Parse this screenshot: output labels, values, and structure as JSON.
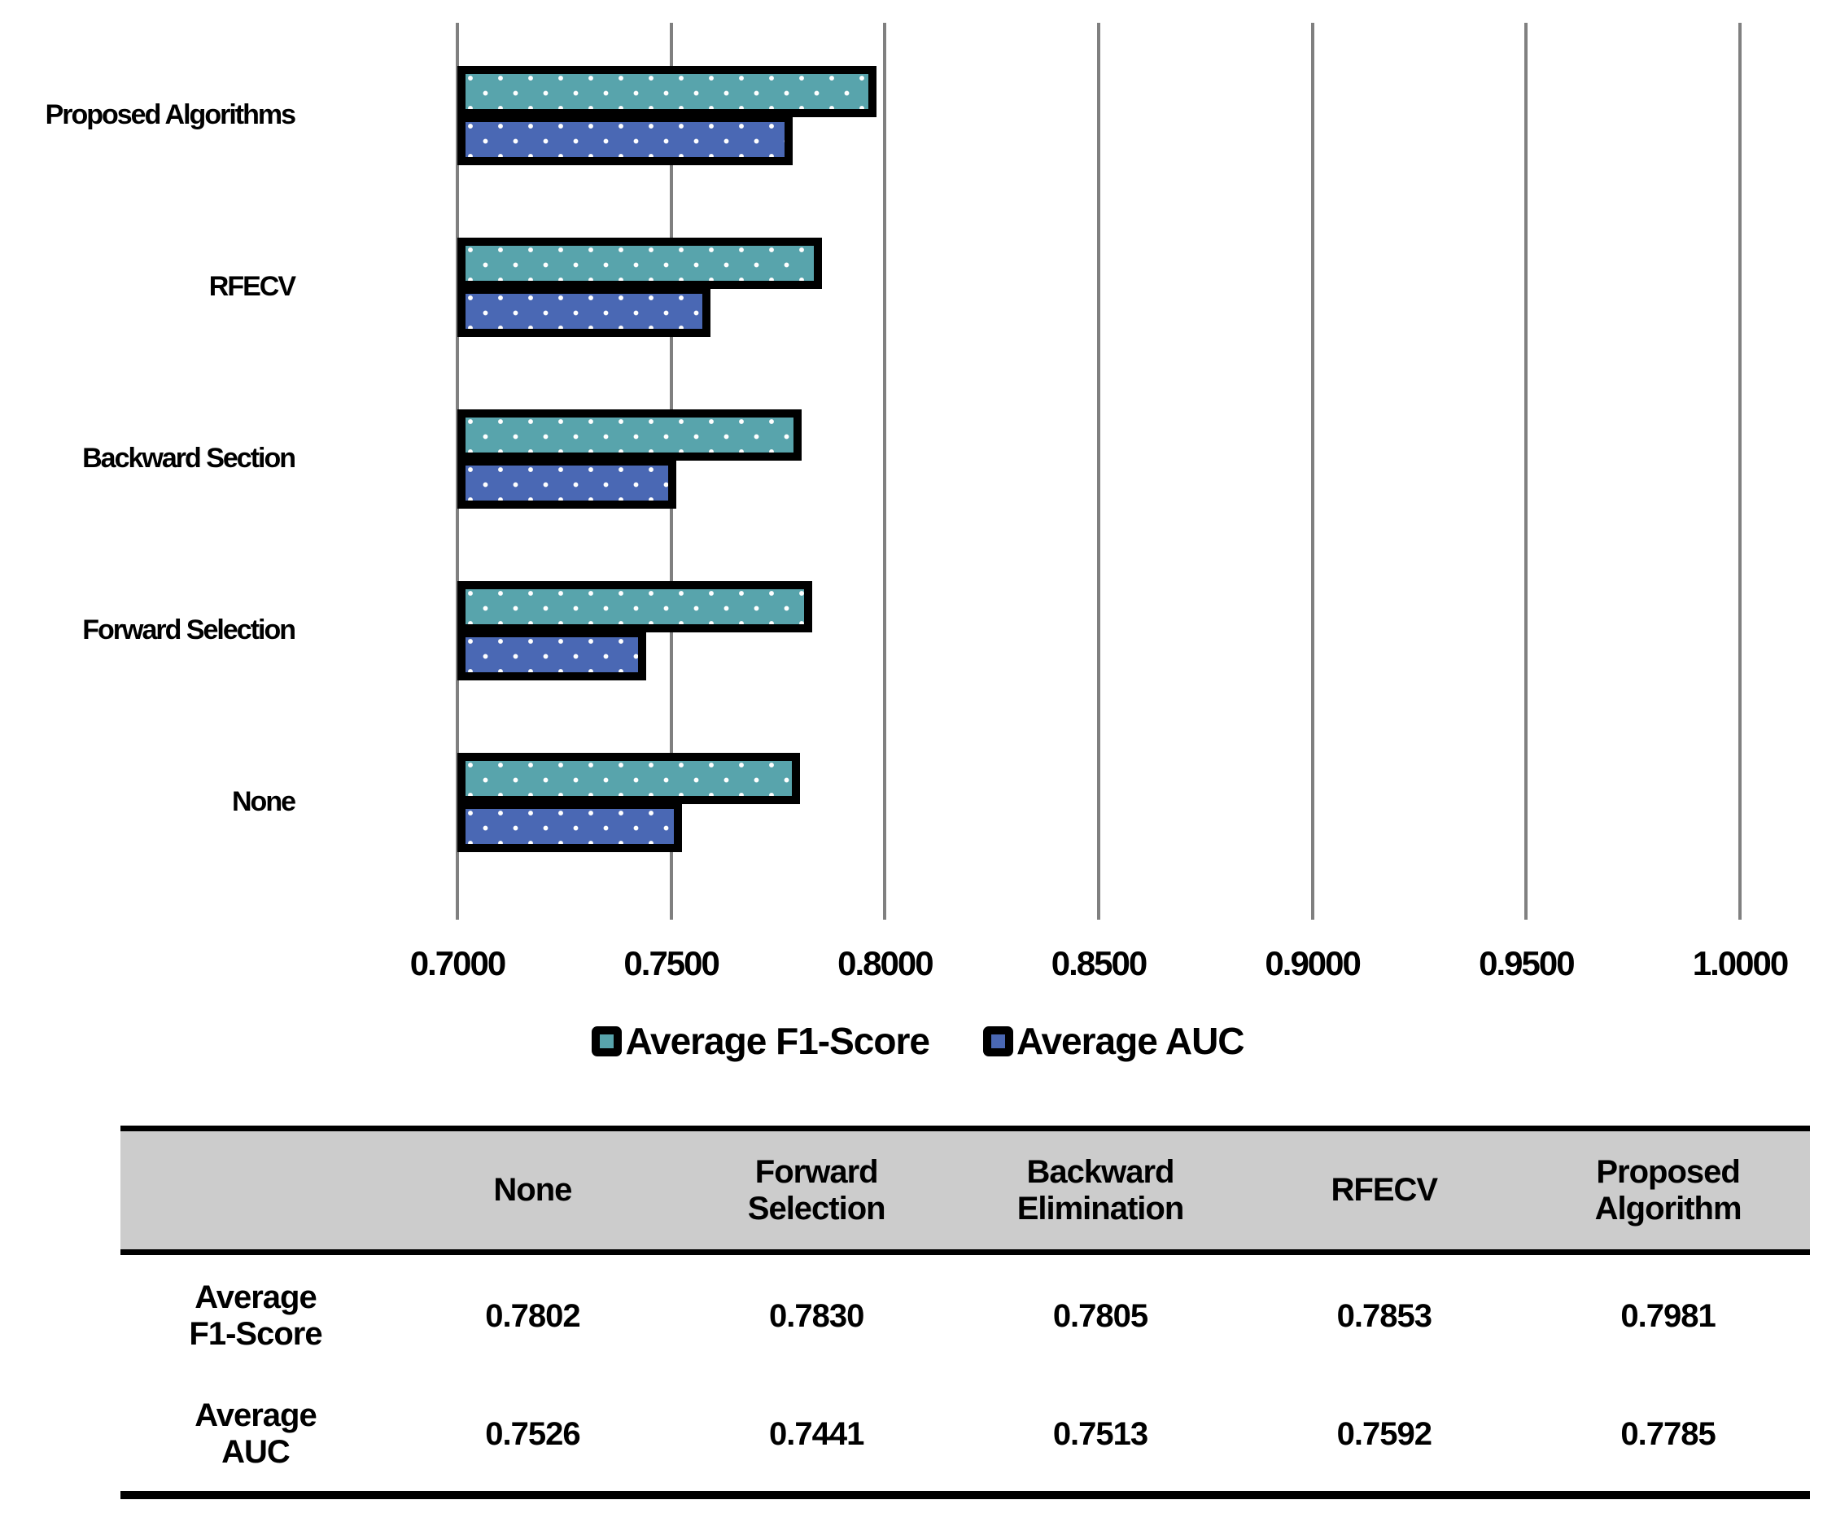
{
  "chart_data": {
    "type": "bar",
    "orientation": "horizontal",
    "title": "",
    "categories": [
      "Proposed Algorithms",
      "RFECV",
      "Backward Section",
      "Forward Selection",
      "None"
    ],
    "series": [
      {
        "name": "Average F1-Score",
        "color": "#58A4AC",
        "values": [
          0.7981,
          0.7853,
          0.7805,
          0.783,
          0.7802
        ]
      },
      {
        "name": "Average AUC",
        "color": "#4A68B4",
        "values": [
          0.7785,
          0.7592,
          0.7513,
          0.7441,
          0.7526
        ]
      }
    ],
    "xlim": [
      0.7,
      1.0
    ],
    "x_ticks": [
      "0.7000",
      "0.7500",
      "0.8000",
      "0.8500",
      "0.9000",
      "0.9500",
      "1.0000"
    ],
    "grid": true,
    "gridline_color": "#808080",
    "bar_border_color": "#000000",
    "bar_pattern": "white-dots",
    "legend_position": "bottom"
  },
  "table": {
    "header_bg": "#CCCCCC",
    "columns": [
      "",
      "None",
      "Forward Selection",
      "Backward Elimination",
      "RFECV",
      "Proposed Algorithm"
    ],
    "rows": [
      {
        "label": "Average F1-Score",
        "values": [
          "0.7802",
          "0.7830",
          "0.7805",
          "0.7853",
          "0.7981"
        ]
      },
      {
        "label": "Average AUC",
        "values": [
          "0.7526",
          "0.7441",
          "0.7513",
          "0.7592",
          "0.7785"
        ]
      }
    ]
  }
}
